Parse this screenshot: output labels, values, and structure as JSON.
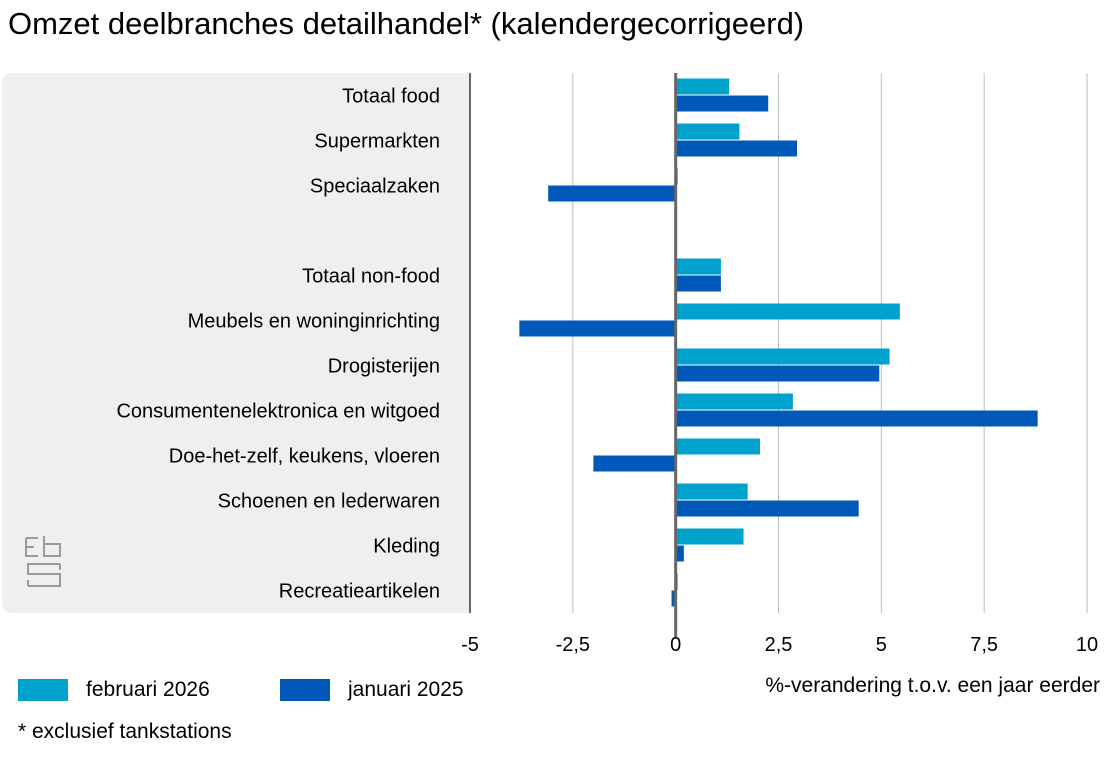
{
  "title": "Omzet deelbranches detailhandel* (kalendergecorrigeerd)",
  "footnote": "* exclusief tankstations",
  "colors": {
    "series1": "#00a1cd",
    "series2": "#0058b8",
    "panel": "#efefef",
    "grid": "#bdbdbd",
    "axis": "#666666"
  },
  "chart_data": {
    "type": "bar",
    "orientation": "horizontal",
    "title": "Omzet deelbranches detailhandel* (kalendergecorrigeerd)",
    "xlabel": "%-verandering t.o.v. een jaar eerder",
    "xlim": [
      -5,
      10
    ],
    "ticks": [
      -5,
      -2.5,
      0,
      2.5,
      5,
      7.5,
      10
    ],
    "tick_labels": [
      "-5",
      "-2,5",
      "0",
      "2,5",
      "5",
      "7,5",
      "10"
    ],
    "grid": true,
    "legend_position": "bottom-left",
    "categories": [
      "Totaal food",
      "Supermarkten",
      "Speciaalzaken",
      "",
      "Totaal non-food",
      "Meubels en woninginrichting",
      "Drogisterijen",
      "Consumentenelektronica en witgoed",
      "Doe-het-zelf, keukens, vloeren",
      "Schoenen en lederwaren",
      "Kleding",
      "Recreatieartikelen"
    ],
    "series": [
      {
        "name": "februari 2026",
        "values": [
          1.3,
          1.55,
          0.05,
          null,
          1.1,
          5.45,
          5.2,
          2.85,
          2.05,
          1.75,
          1.65,
          0
        ]
      },
      {
        "name": "januari 2025",
        "values": [
          2.25,
          2.95,
          -3.1,
          null,
          1.1,
          -3.8,
          4.95,
          8.8,
          -2.0,
          4.45,
          0.2,
          -0.1
        ]
      }
    ]
  }
}
